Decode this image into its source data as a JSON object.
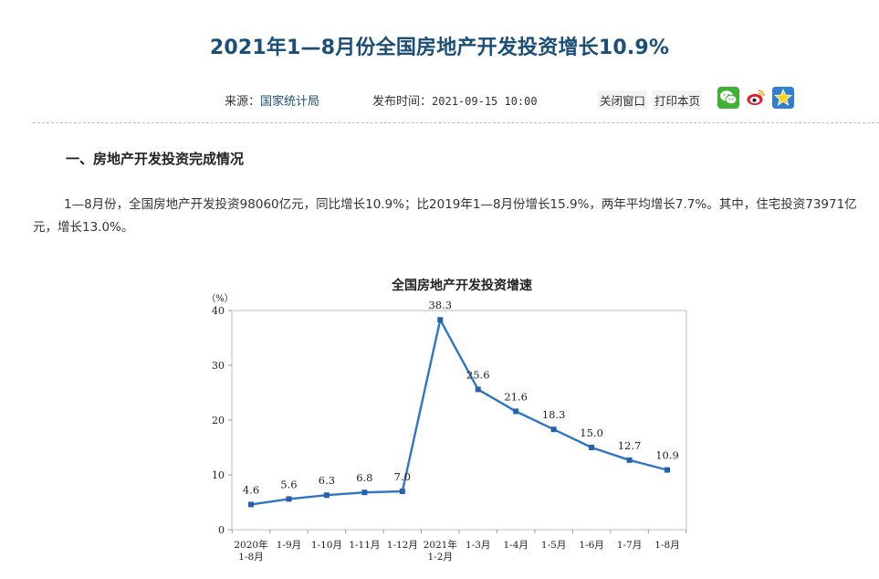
{
  "article": {
    "title": "2021年1—8月份全国房地产开发投资增长10.9%",
    "source_label": "来源：",
    "source_name": "国家统计局",
    "publish_label": "发布时间：",
    "publish_time": "2021-09-15  10:00",
    "close_label": "关闭窗口",
    "print_label": "打印本页",
    "share_icons": [
      "wechat-icon",
      "weibo-icon",
      "qzone-icon"
    ],
    "section_heading": "一、房地产开发投资完成情况",
    "paragraph": "1—8月份，全国房地产开发投资98060亿元，同比增长10.9%；比2019年1—8月份增长15.9%，两年平均增长7.7%。其中，住宅投资73971亿元，增长13.0%。",
    "colors": {
      "title": "#1b4f78",
      "link": "#1b4f78",
      "line": "#2e75c5"
    }
  },
  "chart_data": {
    "type": "line",
    "title": "全国房地产开发投资增速",
    "ylabel": "（%）",
    "ylim": [
      0,
      40
    ],
    "yticks": [
      0,
      10,
      20,
      30,
      40
    ],
    "categories": [
      [
        "2020年",
        "1-8月"
      ],
      [
        "1-9月"
      ],
      [
        "1-10月"
      ],
      [
        "1-11月"
      ],
      [
        "1-12月"
      ],
      [
        "2021年",
        "1-2月"
      ],
      [
        "1-3月"
      ],
      [
        "1-4月"
      ],
      [
        "1-5月"
      ],
      [
        "1-6月"
      ],
      [
        "1-7月"
      ],
      [
        "1-8月"
      ]
    ],
    "values": [
      4.6,
      5.6,
      6.3,
      6.8,
      7.0,
      38.3,
      25.6,
      21.6,
      18.3,
      15.0,
      12.7,
      10.9
    ],
    "value_labels": [
      "4.6",
      "5.6",
      "6.3",
      "6.8",
      "7.0",
      "38.3",
      "25.6",
      "21.6",
      "18.3",
      "15.0",
      "12.7",
      "10.9"
    ],
    "grid": false,
    "legend": "none"
  }
}
